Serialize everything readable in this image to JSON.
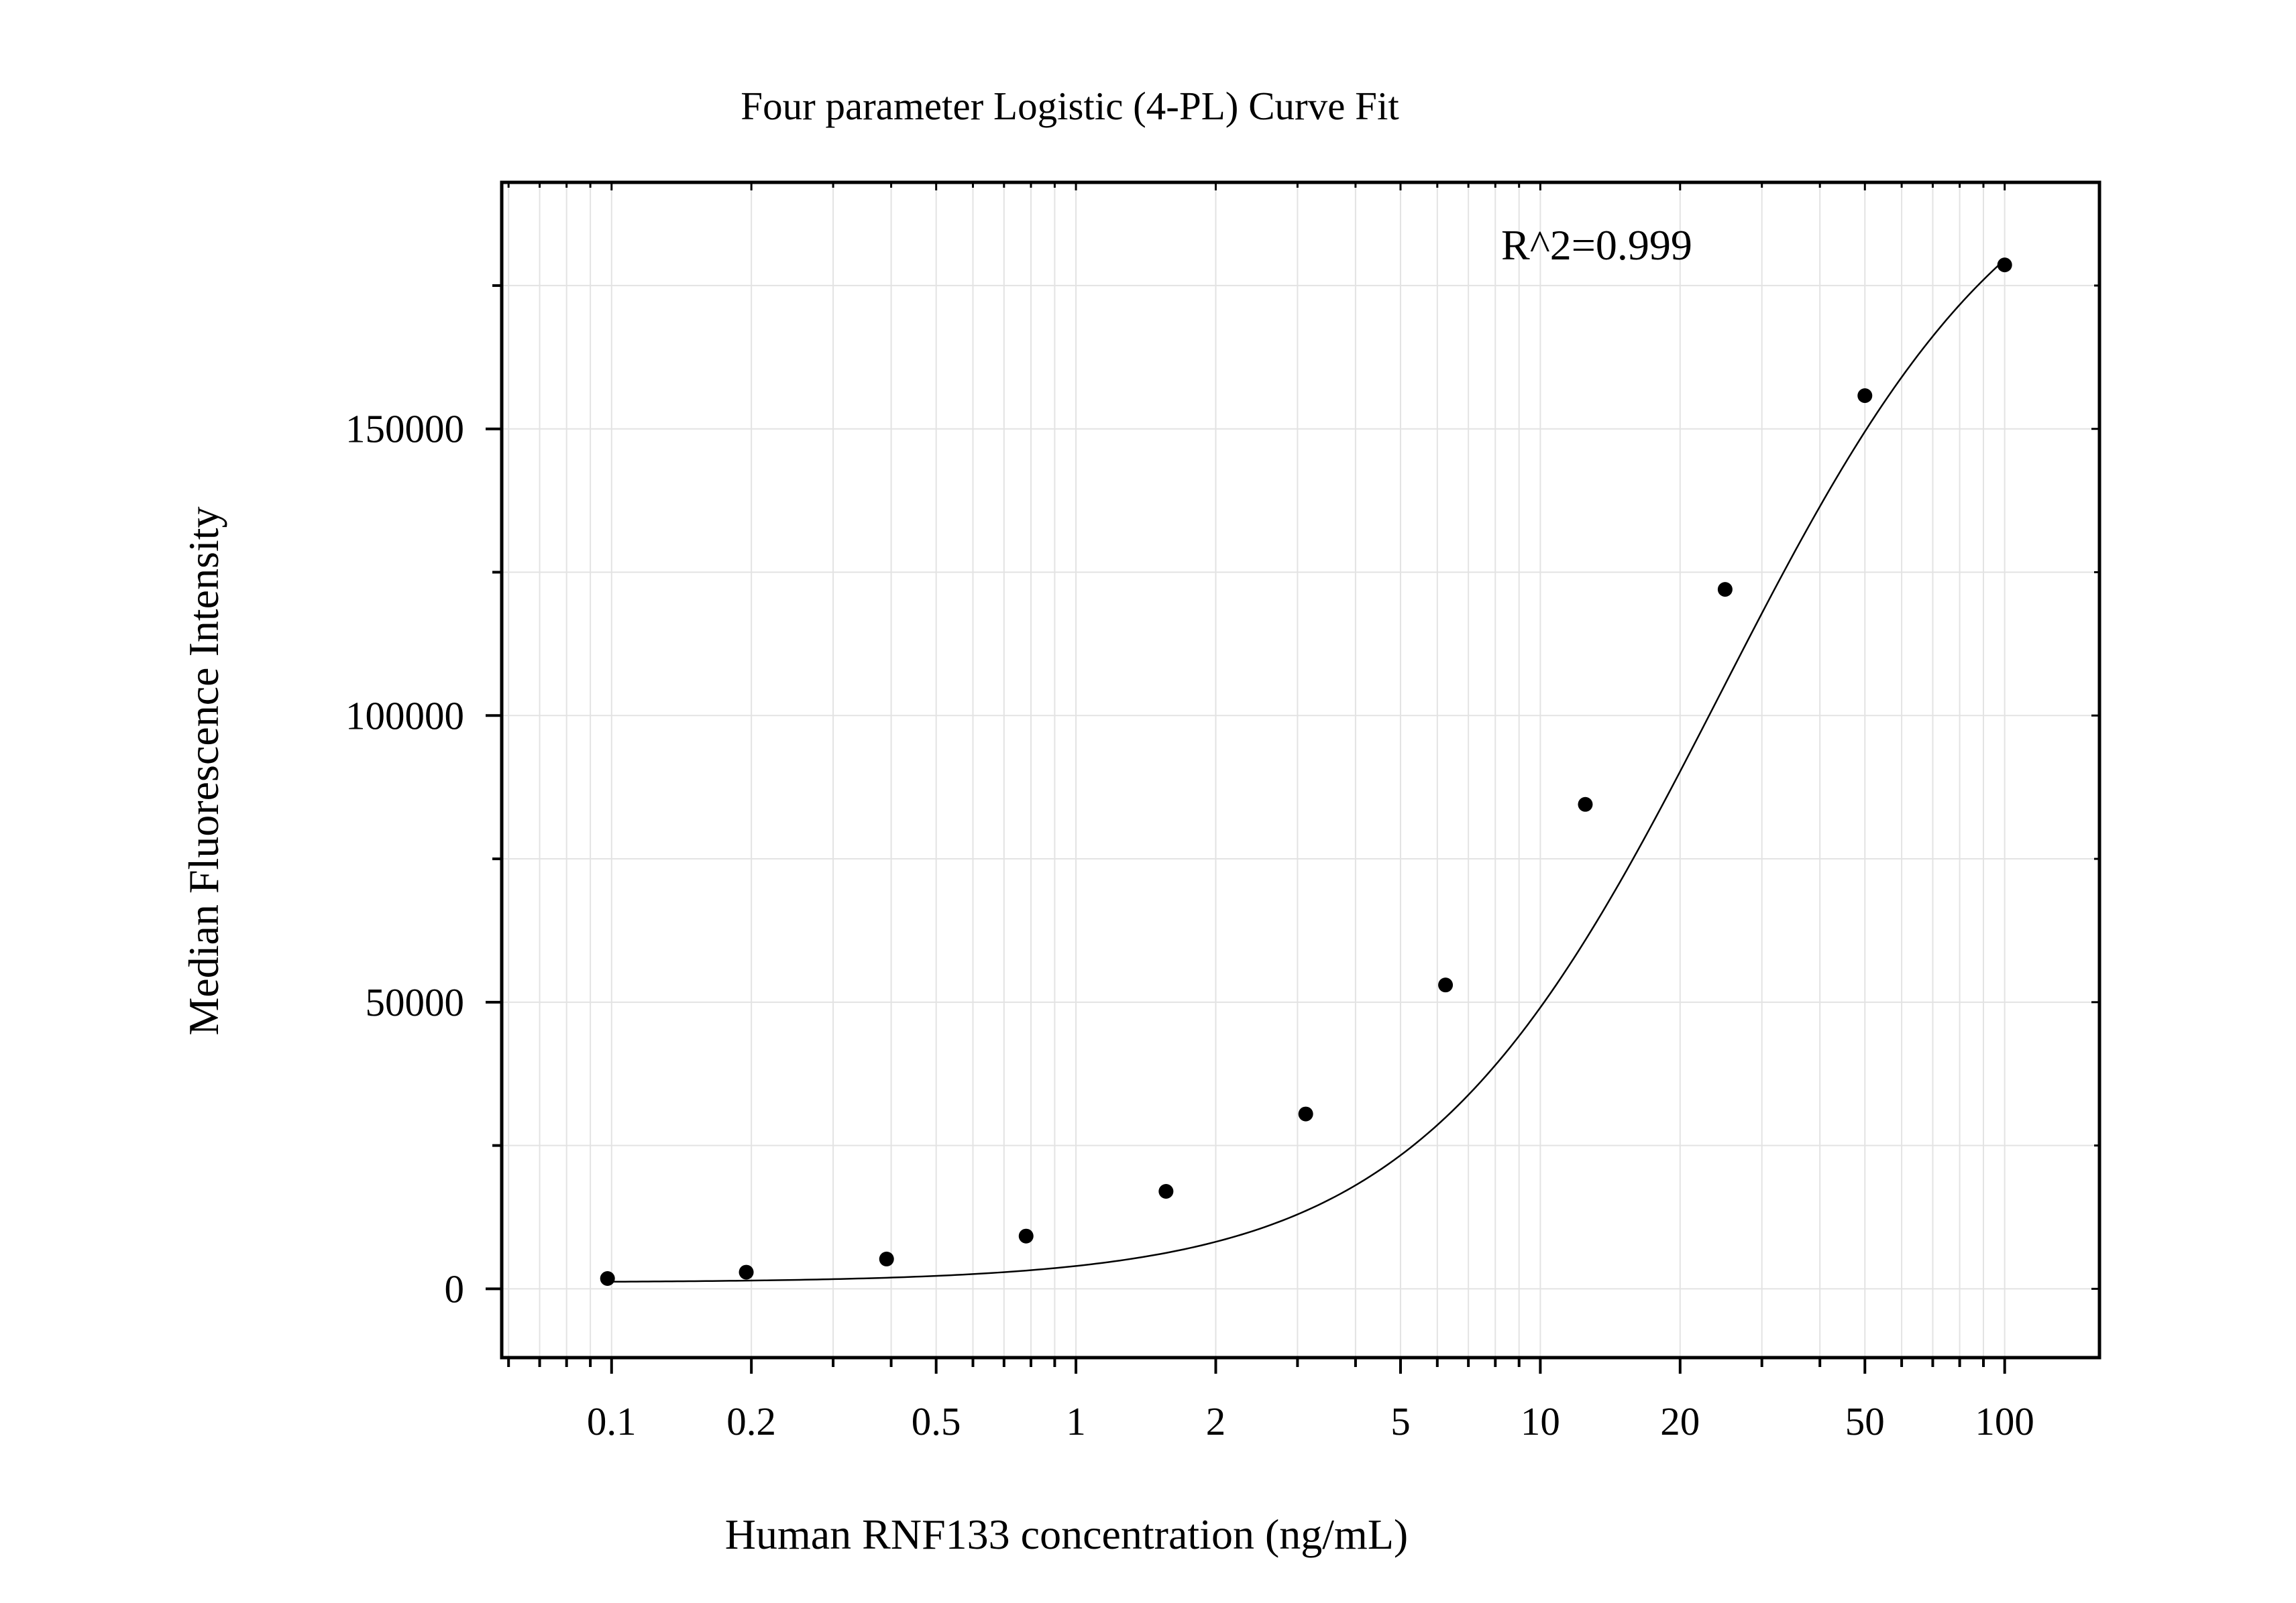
{
  "chart_data": {
    "type": "scatter",
    "title": "Four parameter Logistic (4-PL) Curve Fit",
    "xlabel": "Human RNF133 concentration (ng/mL)",
    "ylabel": "Median Fluorescence Intensity",
    "x_scale": "log",
    "xlim": [
      0.058,
      160
    ],
    "ylim": [
      -12000,
      193000
    ],
    "grid": true,
    "x_ticks": [
      0.1,
      0.2,
      0.5,
      1,
      2,
      5,
      10,
      20,
      50,
      100
    ],
    "x_tick_labels": [
      "0.1",
      "0.2",
      "0.5",
      "1",
      "2",
      "5",
      "10",
      "20",
      "50",
      "100"
    ],
    "y_ticks": [
      0,
      50000,
      100000,
      150000
    ],
    "y_tick_labels": [
      "0",
      "50000",
      "100000",
      "150000"
    ],
    "y_minor_ticks": [
      25000,
      75000,
      125000,
      175000
    ],
    "annotation": "R^2=0.999",
    "series": [
      {
        "points": [
          {
            "x": 0.098,
            "y": 1800
          },
          {
            "x": 0.195,
            "y": 2900
          },
          {
            "x": 0.391,
            "y": 5200
          },
          {
            "x": 0.781,
            "y": 9200
          },
          {
            "x": 1.563,
            "y": 17000
          },
          {
            "x": 3.125,
            "y": 30500
          },
          {
            "x": 6.25,
            "y": 53000
          },
          {
            "x": 12.5,
            "y": 84500
          },
          {
            "x": 25,
            "y": 122000
          },
          {
            "x": 50,
            "y": 155800
          },
          {
            "x": 100,
            "y": 178600
          }
        ]
      }
    ],
    "colors": {
      "points": "#000000",
      "curve": "#000000",
      "grid": "#e3e3e3",
      "frame": "#000000"
    }
  }
}
